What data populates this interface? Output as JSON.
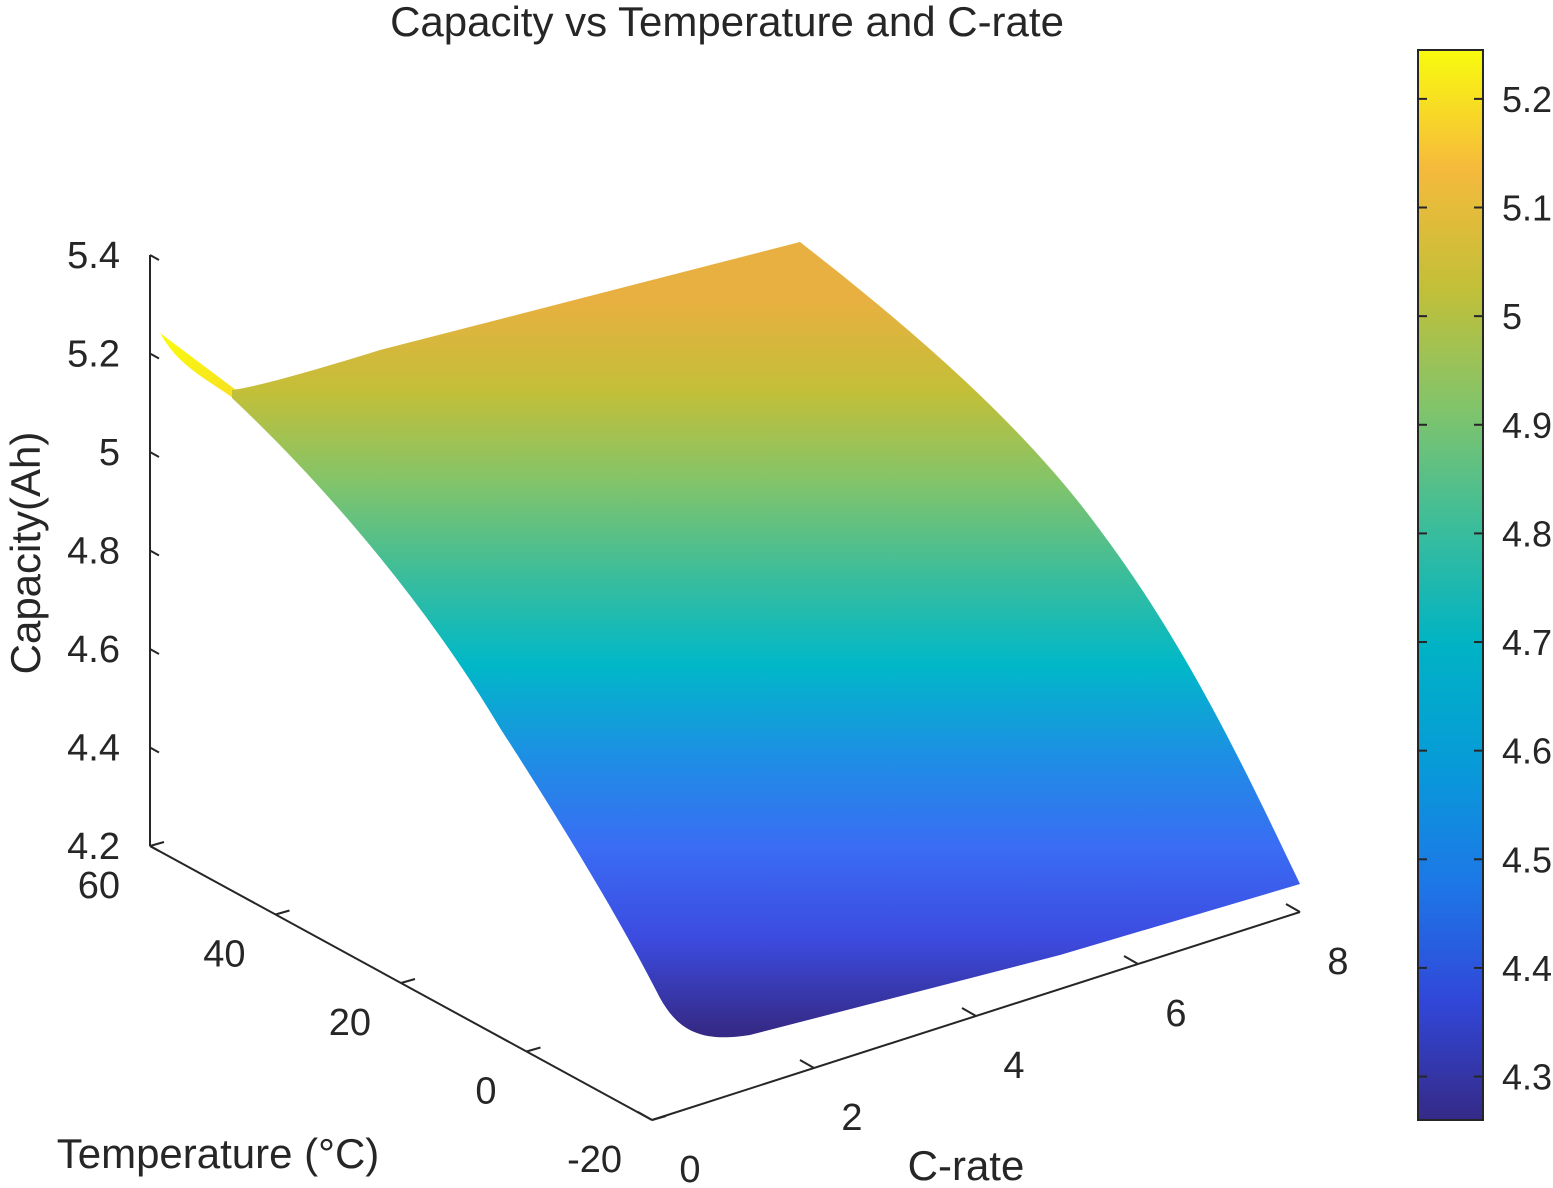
{
  "chart_data": {
    "type": "surface",
    "title": "Capacity vs Temperature and C-rate",
    "xlabel": "C-rate",
    "ylabel": "Temperature (°C)",
    "zlabel": "Capacity(Ah)",
    "xlim": [
      0,
      8
    ],
    "ylim": [
      -20,
      60
    ],
    "zlim": [
      4.2,
      5.4
    ],
    "xticks": [
      "0",
      "2",
      "4",
      "6",
      "8"
    ],
    "yticks": [
      "-20",
      "0",
      "20",
      "40",
      "60"
    ],
    "zticks": [
      "4.2",
      "4.4",
      "4.6",
      "4.8",
      "5",
      "5.2",
      "5.4"
    ],
    "colorbar": {
      "range": [
        4.26,
        5.245
      ],
      "ticks": [
        "4.3",
        "4.4",
        "4.5",
        "4.6",
        "4.7",
        "4.8",
        "4.9",
        "5",
        "5.1",
        "5.2"
      ],
      "colormap": "parula"
    },
    "corner_values": [
      {
        "c_rate": 0,
        "temperature": 60,
        "capacity": 5.24
      },
      {
        "c_rate": 8,
        "temperature": 60,
        "capacity": 4.99
      },
      {
        "c_rate": 0,
        "temperature": -20,
        "capacity": 4.36
      },
      {
        "c_rate": 8,
        "temperature": -20,
        "capacity": 4.27
      }
    ],
    "colors": {
      "parula": [
        "#352a87",
        "#3147d9",
        "#1d78e7",
        "#079bd8",
        "#00b3c4",
        "#3cbd9a",
        "#82c46a",
        "#c3bf38",
        "#f5ba3c",
        "#f9fb0e"
      ]
    }
  }
}
